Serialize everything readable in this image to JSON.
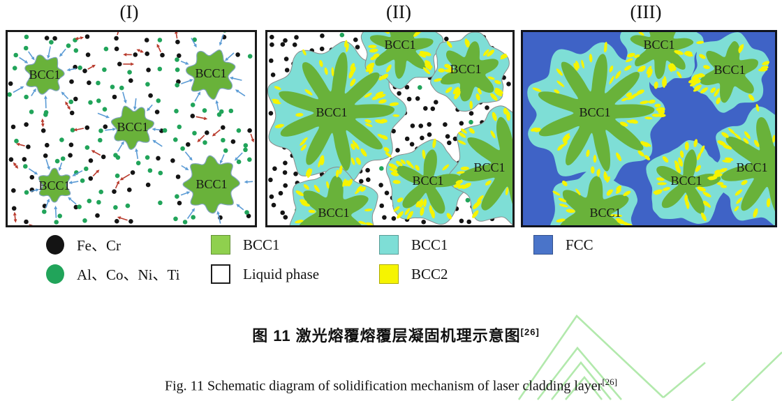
{
  "figure": {
    "stage_titles": [
      "(I)",
      "(II)",
      "(III)"
    ],
    "panel1_labels": [
      "BCC1",
      "BCC1",
      "BCC1",
      "BCC1",
      "BCC1"
    ],
    "panel2_labels": [
      "BCC1",
      "BCC1",
      "BCC1",
      "BCC1",
      "BCC1",
      "BCC1"
    ],
    "panel3_labels": [
      "BCC1",
      "BCC1",
      "BCC1",
      "BCC1",
      "BCC1",
      "BCC1"
    ]
  },
  "legend": {
    "fe_cr": "Fe、Cr",
    "al_co_ni_ti": "Al、Co、Ni、Ti",
    "bcc1_green": "BCC1",
    "liquid_phase": "Liquid phase",
    "bcc1_cyan": "BCC1",
    "bcc2": "BCC2",
    "fcc": "FCC"
  },
  "captions": {
    "zh": "图 11 激光熔覆熔覆层凝固机理示意图",
    "zh_ref": "[26]",
    "en": "Fig. 11 Schematic diagram of solidification mechanism of laser cladding layer",
    "en_ref": "[26]"
  },
  "colors": {
    "bcc1_green": "#69b23a",
    "bcc1_cyan": "#7eded6",
    "bcc2_yellow": "#f6f400",
    "fcc_blue": "#3f63c6",
    "dot_black": "#141414",
    "dot_green": "#21a45a",
    "arrow_red": "#b8392b",
    "arrow_blue": "#5b9bd5",
    "legend_green": "#8fd04e",
    "legend_blue": "#4a74c9",
    "watermark_green": "#b2e9ac"
  }
}
